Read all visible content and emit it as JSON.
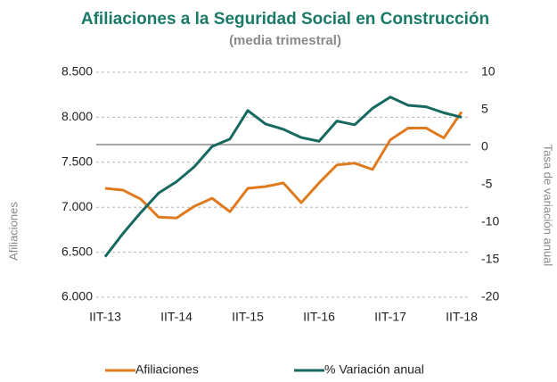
{
  "chart_data": {
    "type": "line",
    "title": "Afiliaciones a la Seguridad Social en Construcción",
    "subtitle": "(media trimestral)",
    "ylabel": "Afiliaciones",
    "y2label": "Tasa de variación anual",
    "categories": [
      "IIT-13",
      null,
      null,
      null,
      "IIT-14",
      null,
      null,
      null,
      "IIT-15",
      null,
      null,
      null,
      "IIT-16",
      null,
      null,
      null,
      "IIT-17",
      null,
      null,
      null,
      "IIT-18"
    ],
    "series": [
      {
        "name": "Afiliaciones",
        "color": "#e07a1f",
        "axis": "y",
        "values": [
          7210,
          7190,
          7090,
          6890,
          6880,
          7010,
          7100,
          6950,
          7210,
          7230,
          7270,
          7050,
          7270,
          7470,
          7490,
          7420,
          7750,
          7880,
          7880,
          7770,
          8060
        ]
      },
      {
        "name": "% Variación anual",
        "color": "#17695f",
        "axis": "y2",
        "values": [
          -14.6,
          -11.5,
          -8.7,
          -6.1,
          -4.6,
          -2.6,
          0.1,
          1.1,
          4.9,
          3.1,
          2.4,
          1.3,
          0.8,
          3.5,
          3.0,
          5.2,
          6.7,
          5.6,
          5.4,
          4.6,
          4.0
        ]
      }
    ],
    "ylim": [
      6000,
      8500
    ],
    "yticks": [
      {
        "value": 6000,
        "label": "6.000"
      },
      {
        "value": 6500,
        "label": "6.500"
      },
      {
        "value": 7000,
        "label": "7.000"
      },
      {
        "value": 7500,
        "label": "7.500"
      },
      {
        "value": 8000,
        "label": "8.000"
      },
      {
        "value": 8500,
        "label": "8.500"
      }
    ],
    "y2lim": [
      -20,
      10
    ],
    "y2ticks": [
      -20,
      -15,
      -10,
      -5,
      0,
      5,
      10
    ],
    "grid": true,
    "legend": "bottom"
  }
}
